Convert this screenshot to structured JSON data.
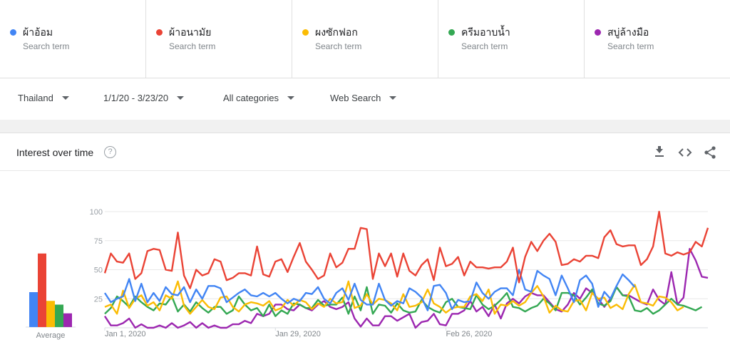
{
  "search_terms": [
    {
      "name": "ผ้าอ้อม",
      "sub": "Search term",
      "color": "#4285f4"
    },
    {
      "name": "ผ้าอนามัย",
      "sub": "Search term",
      "color": "#ea4335"
    },
    {
      "name": "ผงซักฟอก",
      "sub": "Search term",
      "color": "#fbbc04"
    },
    {
      "name": "ครีมอาบน้ำ",
      "sub": "Search term",
      "color": "#34a853"
    },
    {
      "name": "สบู่ล้างมือ",
      "sub": "Search term",
      "color": "#9c27b0"
    }
  ],
  "filters": {
    "region": "Thailand",
    "date_range": "1/1/20 - 3/23/20",
    "category": "All categories",
    "search_type": "Web Search"
  },
  "card": {
    "title": "Interest over time",
    "tools": [
      "download-icon",
      "embed-icon",
      "share-icon"
    ]
  },
  "chart_data": {
    "type": "line",
    "y_ticks": [
      "100",
      "75",
      "50",
      "25"
    ],
    "ylim": [
      0,
      100
    ],
    "x_tick_labels": [
      "Jan 1, 2020",
      "Jan 29, 2020",
      "Feb 26, 2020"
    ],
    "x_tick_indices": [
      0,
      28,
      56
    ],
    "average_label": "Average",
    "averages": [
      28,
      59,
      21,
      18,
      11
    ],
    "series": [
      {
        "name": "ผ้าอ้อม",
        "color": "#4285f4",
        "values": [
          30,
          22,
          25,
          27,
          42,
          23,
          38,
          22,
          30,
          23,
          35,
          29,
          28,
          35,
          22,
          33,
          25,
          36,
          36,
          34,
          22,
          26,
          30,
          33,
          28,
          27,
          30,
          27,
          30,
          25,
          21,
          25,
          23,
          30,
          29,
          35,
          25,
          21,
          30,
          34,
          24,
          38,
          24,
          20,
          20,
          38,
          24,
          19,
          23,
          21,
          34,
          31,
          26,
          15,
          36,
          37,
          30,
          16,
          24,
          22,
          23,
          39,
          30,
          25,
          31,
          34,
          34,
          28,
          50,
          33,
          31,
          49,
          45,
          42,
          28,
          45,
          34,
          22,
          41,
          45,
          38,
          18,
          31,
          25,
          36,
          46,
          41,
          35
        ]
      },
      {
        "name": "ผ้าอนามัย",
        "color": "#ea4335",
        "values": [
          47,
          64,
          57,
          56,
          64,
          42,
          47,
          66,
          68,
          67,
          50,
          49,
          82,
          45,
          34,
          50,
          45,
          47,
          59,
          57,
          41,
          43,
          47,
          47,
          45,
          70,
          46,
          44,
          57,
          59,
          48,
          61,
          73,
          57,
          50,
          42,
          45,
          64,
          52,
          56,
          68,
          68,
          86,
          85,
          42,
          64,
          53,
          64,
          44,
          64,
          49,
          45,
          54,
          59,
          41,
          69,
          53,
          55,
          61,
          45,
          57,
          52,
          52,
          51,
          52,
          52,
          57,
          69,
          39,
          61,
          74,
          66,
          75,
          81,
          74,
          54,
          55,
          59,
          57,
          62,
          62,
          60,
          78,
          84,
          72,
          70,
          71,
          71,
          54,
          59,
          70,
          100,
          64,
          62,
          65,
          63,
          65,
          74,
          70,
          86
        ]
      },
      {
        "name": "ผงซักฟอก",
        "color": "#fbbc04",
        "values": [
          18,
          20,
          12,
          32,
          17,
          25,
          28,
          19,
          22,
          15,
          28,
          25,
          40,
          19,
          12,
          18,
          24,
          18,
          16,
          26,
          27,
          18,
          14,
          20,
          22,
          21,
          19,
          23,
          15,
          17,
          24,
          19,
          24,
          22,
          16,
          21,
          18,
          25,
          21,
          22,
          40,
          17,
          19,
          29,
          20,
          25,
          24,
          21,
          15,
          29,
          18,
          19,
          22,
          33,
          21,
          18,
          13,
          17,
          18,
          18,
          27,
          29,
          23,
          33,
          12,
          20,
          19,
          23,
          19,
          22,
          30,
          36,
          27,
          13,
          19,
          15,
          14,
          23,
          24,
          15,
          30,
          25,
          26,
          17,
          20,
          16,
          29,
          37,
          22,
          21,
          19,
          27,
          26,
          22,
          15,
          18
        ]
      },
      {
        "name": "ครีมอาบน้ำ",
        "color": "#34a853",
        "values": [
          12,
          17,
          27,
          23,
          18,
          27,
          22,
          18,
          15,
          21,
          20,
          27,
          14,
          20,
          14,
          22,
          17,
          13,
          18,
          18,
          12,
          15,
          27,
          20,
          15,
          17,
          10,
          20,
          10,
          15,
          12,
          21,
          20,
          17,
          17,
          24,
          19,
          20,
          20,
          26,
          12,
          27,
          15,
          35,
          12,
          20,
          19,
          13,
          21,
          15,
          13,
          14,
          24,
          18,
          15,
          13,
          22,
          25,
          18,
          17,
          16,
          28,
          20,
          16,
          19,
          24,
          30,
          18,
          17,
          14,
          17,
          19,
          25,
          21,
          15,
          30,
          30,
          28,
          20,
          26,
          33,
          21,
          19,
          23,
          35,
          28,
          27,
          15,
          14,
          17,
          12,
          15,
          20,
          25,
          20,
          19,
          17,
          15,
          18
        ]
      },
      {
        "name": "สบู่ล้างมือ",
        "color": "#9c27b0",
        "values": [
          10,
          2,
          2,
          4,
          8,
          0,
          3,
          0,
          0,
          2,
          0,
          4,
          0,
          2,
          5,
          0,
          4,
          0,
          2,
          0,
          0,
          3,
          3,
          6,
          4,
          12,
          10,
          12,
          20,
          20,
          16,
          15,
          20,
          17,
          15,
          20,
          23,
          18,
          16,
          18,
          22,
          8,
          1,
          8,
          2,
          2,
          10,
          10,
          6,
          9,
          12,
          0,
          5,
          6,
          12,
          3,
          2,
          12,
          12,
          15,
          23,
          14,
          18,
          10,
          20,
          8,
          21,
          25,
          21,
          27,
          30,
          28,
          28,
          22,
          16,
          14,
          20,
          30,
          25,
          34,
          30,
          25,
          18,
          25,
          35,
          28,
          28,
          25,
          22,
          20,
          33,
          24,
          20,
          48,
          20,
          26,
          68,
          58,
          44,
          43
        ]
      }
    ]
  }
}
